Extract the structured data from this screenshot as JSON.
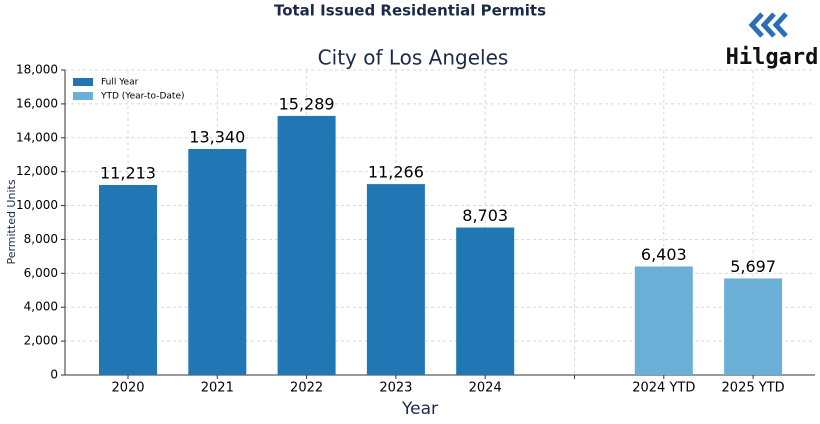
{
  "chart_data": {
    "type": "bar",
    "title": "Total Issued Residential Permits",
    "subtitle": "City of Los Angeles",
    "x_label": "Year",
    "y_label": "Permitted Units",
    "categories": [
      "2020",
      "2021",
      "2022",
      "2023",
      "2024",
      null,
      "2024 YTD",
      "2025 YTD"
    ],
    "series": [
      {
        "name": "Full Year",
        "color": "#2077b4",
        "values": [
          11213,
          13340,
          15289,
          11266,
          8703,
          null,
          null,
          null
        ],
        "value_labels": [
          "11,213",
          "13,340",
          "15,289",
          "11,266",
          "8,703",
          null,
          null,
          null
        ]
      },
      {
        "name": "YTD (Year-to-Date)",
        "color": "#6baed6",
        "values": [
          null,
          null,
          null,
          null,
          null,
          null,
          6403,
          5697
        ],
        "value_labels": [
          null,
          null,
          null,
          null,
          null,
          null,
          "6,403",
          "5,697"
        ]
      }
    ],
    "ylim": [
      0,
      18000
    ],
    "yticks": [
      0,
      {
        "value": 2000,
        "label": "2,000"
      },
      {
        "value": 4000,
        "label": "4,000"
      },
      {
        "value": 6000,
        "label": "6,000"
      },
      {
        "value": 8000,
        "label": "8,000"
      },
      {
        "value": 10000,
        "label": "10,000"
      },
      {
        "value": 12000,
        "label": "12,000"
      },
      {
        "value": 14000,
        "label": "14,000"
      },
      {
        "value": 16000,
        "label": "16,000"
      },
      {
        "value": 18000,
        "label": "18,000"
      }
    ],
    "grid": true,
    "legend": "upper left"
  },
  "logo": {
    "text": "Hilgard"
  }
}
